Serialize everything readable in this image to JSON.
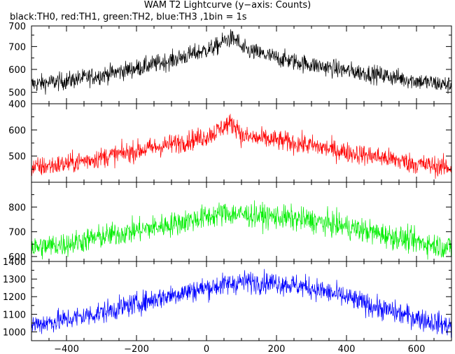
{
  "title": "WAM T2 Lightcurve (y−axis: Counts)",
  "subtitle": "black:TH0, red:TH1, green:TH2, blue:TH3 ,1bin = 1s",
  "chart_data": {
    "type": "line",
    "xlim": [
      -500,
      700
    ],
    "x_ticks": [
      -400,
      -200,
      0,
      200,
      400,
      600
    ],
    "x_tick_labels": [
      "−400",
      "−200",
      "0",
      "200",
      "400",
      "600"
    ],
    "bin_seconds": 1,
    "panels": [
      {
        "name": "TH0",
        "color": "#000000",
        "ylim": [
          450,
          790
        ],
        "y_ticks": [
          500,
          600,
          700
        ],
        "y_tick_labels": [
          "500",
          "600",
          "700"
        ],
        "top_label": "700",
        "profile_x": [
          -500,
          -400,
          -300,
          -200,
          -100,
          0,
          30,
          50,
          70,
          90,
          100,
          200,
          300,
          400,
          500,
          600,
          700
        ],
        "profile_y": [
          535,
          550,
          575,
          605,
          640,
          685,
          700,
          725,
          735,
          725,
          690,
          650,
          620,
          595,
          575,
          550,
          530
        ],
        "noise": 28
      },
      {
        "name": "TH1",
        "color": "#ff0000",
        "ylim": [
          400,
          700
        ],
        "y_ticks": [
          500,
          600
        ],
        "y_tick_labels": [
          "500",
          "600"
        ],
        "top_label": "400",
        "profile_x": [
          -500,
          -400,
          -300,
          -200,
          -100,
          0,
          30,
          50,
          70,
          90,
          100,
          200,
          300,
          400,
          500,
          600,
          700
        ],
        "profile_y": [
          455,
          470,
          495,
          520,
          545,
          575,
          595,
          615,
          625,
          610,
          575,
          560,
          540,
          515,
          495,
          470,
          455
        ],
        "noise": 28
      },
      {
        "name": "TH2",
        "color": "#00ee00",
        "ylim": [
          580,
          900
        ],
        "y_ticks": [
          600,
          700,
          800
        ],
        "y_tick_labels": [
          "600",
          "700",
          "800"
        ],
        "top_label": "",
        "profile_x": [
          -500,
          -400,
          -300,
          -200,
          -100,
          0,
          50,
          100,
          200,
          300,
          400,
          500,
          600,
          700
        ],
        "profile_y": [
          635,
          650,
          680,
          705,
          730,
          760,
          775,
          770,
          760,
          745,
          720,
          690,
          660,
          635
        ],
        "noise": 35
      },
      {
        "name": "TH3",
        "color": "#0000ff",
        "ylim": [
          950,
          1400
        ],
        "y_ticks": [
          1000,
          1100,
          1200,
          1300
        ],
        "y_tick_labels": [
          "1000",
          "1100",
          "1200",
          "1300"
        ],
        "top_label": "1400",
        "profile_x": [
          -500,
          -400,
          -300,
          -200,
          -100,
          0,
          100,
          200,
          300,
          400,
          500,
          600,
          700
        ],
        "profile_y": [
          1040,
          1070,
          1110,
          1160,
          1210,
          1250,
          1285,
          1280,
          1250,
          1195,
          1130,
          1080,
          1030
        ],
        "noise": 45
      }
    ]
  }
}
